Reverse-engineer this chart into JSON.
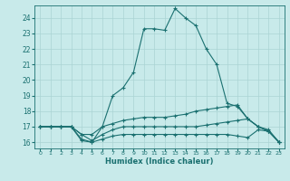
{
  "title": "",
  "xlabel": "Humidex (Indice chaleur)",
  "ylabel": "",
  "background_color": "#c8eaea",
  "grid_color": "#aad4d4",
  "line_color": "#1a7070",
  "xlim": [
    -0.5,
    23.5
  ],
  "ylim": [
    15.6,
    24.8
  ],
  "yticks": [
    16,
    17,
    18,
    19,
    20,
    21,
    22,
    23,
    24
  ],
  "xticks": [
    0,
    1,
    2,
    3,
    4,
    5,
    6,
    7,
    8,
    9,
    10,
    11,
    12,
    13,
    14,
    15,
    16,
    17,
    18,
    19,
    20,
    21,
    22,
    23
  ],
  "lines": [
    {
      "x": [
        0,
        1,
        2,
        3,
        4,
        5,
        6,
        7,
        8,
        9,
        10,
        11,
        12,
        13,
        14,
        15,
        16,
        17,
        18,
        19,
        20,
        21,
        22,
        23
      ],
      "y": [
        17.0,
        17.0,
        17.0,
        17.0,
        16.1,
        16.0,
        17.0,
        19.0,
        19.5,
        20.5,
        23.3,
        23.3,
        23.2,
        24.6,
        24.0,
        23.5,
        22.0,
        21.0,
        18.5,
        18.3,
        17.5,
        17.0,
        16.8,
        16.0
      ]
    },
    {
      "x": [
        0,
        1,
        2,
        3,
        4,
        5,
        6,
        7,
        8,
        9,
        10,
        11,
        12,
        13,
        14,
        15,
        16,
        17,
        18,
        19,
        20,
        21,
        22,
        23
      ],
      "y": [
        17.0,
        17.0,
        17.0,
        17.0,
        16.5,
        16.5,
        17.0,
        17.2,
        17.4,
        17.5,
        17.6,
        17.6,
        17.6,
        17.7,
        17.8,
        18.0,
        18.1,
        18.2,
        18.3,
        18.4,
        17.5,
        17.0,
        16.7,
        16.0
      ]
    },
    {
      "x": [
        0,
        1,
        2,
        3,
        4,
        5,
        6,
        7,
        8,
        9,
        10,
        11,
        12,
        13,
        14,
        15,
        16,
        17,
        18,
        19,
        20,
        21,
        22,
        23
      ],
      "y": [
        17.0,
        17.0,
        17.0,
        17.0,
        16.5,
        16.1,
        16.5,
        16.8,
        17.0,
        17.0,
        17.0,
        17.0,
        17.0,
        17.0,
        17.0,
        17.0,
        17.1,
        17.2,
        17.3,
        17.4,
        17.5,
        17.0,
        16.7,
        16.0
      ]
    },
    {
      "x": [
        0,
        1,
        2,
        3,
        4,
        5,
        6,
        7,
        8,
        9,
        10,
        11,
        12,
        13,
        14,
        15,
        16,
        17,
        18,
        19,
        20,
        21,
        22,
        23
      ],
      "y": [
        17.0,
        17.0,
        17.0,
        17.0,
        16.2,
        16.0,
        16.2,
        16.4,
        16.5,
        16.5,
        16.5,
        16.5,
        16.5,
        16.5,
        16.5,
        16.5,
        16.5,
        16.5,
        16.5,
        16.4,
        16.3,
        16.8,
        16.7,
        16.0
      ]
    }
  ]
}
